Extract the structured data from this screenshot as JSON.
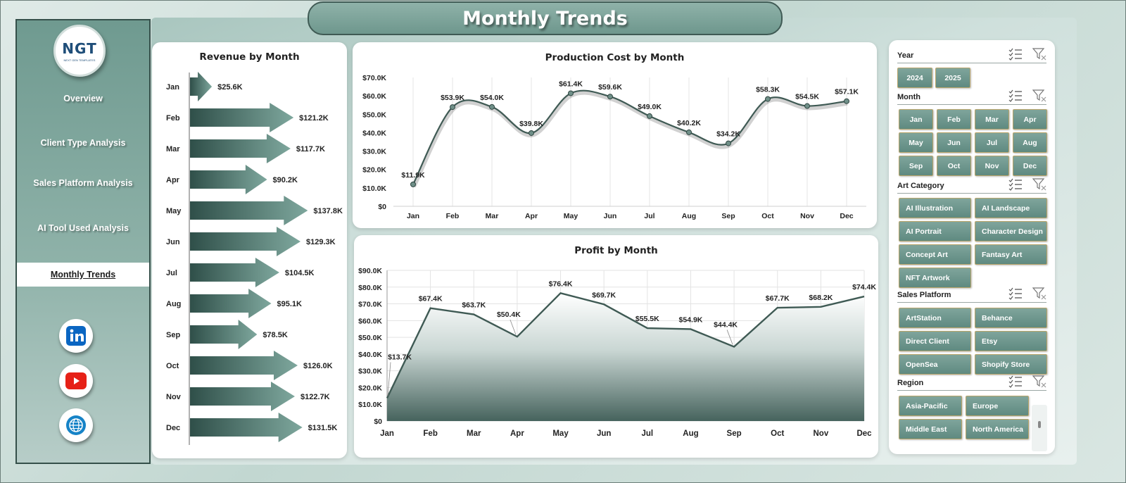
{
  "title": "Monthly Trends",
  "logo": {
    "text": "NGT",
    "subtitle": "NEXT GEN TEMPLATES"
  },
  "nav": [
    {
      "label": "Overview"
    },
    {
      "label": "Client Type Analysis"
    },
    {
      "label": "Sales Platform Analysis"
    },
    {
      "label": "AI Tool Used Analysis"
    },
    {
      "label": "Monthly Trends",
      "active": true
    }
  ],
  "social": [
    {
      "icon": "linkedin-icon",
      "color": "#0a66c2"
    },
    {
      "icon": "youtube-icon",
      "color": "#e62117"
    },
    {
      "icon": "globe-icon",
      "color": "#1683c7"
    }
  ],
  "colors": {
    "accent": "#3e6b61",
    "line": "#3f5a54",
    "slicer_button": "#6d978d"
  },
  "chart_data": [
    {
      "type": "bar",
      "title": "Revenue  by Month",
      "orientation": "horizontal",
      "categories": [
        "Jan",
        "Feb",
        "Mar",
        "Apr",
        "May",
        "Jun",
        "Jul",
        "Aug",
        "Sep",
        "Oct",
        "Nov",
        "Dec"
      ],
      "values": [
        25.6,
        121.2,
        117.7,
        90.2,
        137.8,
        129.3,
        104.5,
        95.1,
        78.5,
        126.0,
        122.7,
        131.5
      ],
      "labels": [
        "$25.6K",
        "$121.2K",
        "$117.7K",
        "$90.2K",
        "$137.8K",
        "$129.3K",
        "$104.5K",
        "$95.1K",
        "$78.5K",
        "$126.0K",
        "$122.7K",
        "$131.5K"
      ],
      "unit": "K"
    },
    {
      "type": "line",
      "title": "Production Cost by Month",
      "categories": [
        "Jan",
        "Feb",
        "Mar",
        "Apr",
        "May",
        "Jun",
        "Jul",
        "Aug",
        "Sep",
        "Oct",
        "Nov",
        "Dec"
      ],
      "values": [
        11.9,
        53.9,
        54.0,
        39.8,
        61.4,
        59.6,
        49.0,
        40.2,
        34.2,
        58.3,
        54.5,
        57.1
      ],
      "labels": [
        "$11.9K",
        "$53.9K",
        "$54.0K",
        "$39.8K",
        "$61.4K",
        "$59.6K",
        "$49.0K",
        "$40.2K",
        "$34.2K",
        "$58.3K",
        "$54.5K",
        "$57.1K"
      ],
      "yticks": [
        "$0",
        "$10.0K",
        "$20.0K",
        "$30.0K",
        "$40.0K",
        "$50.0K",
        "$60.0K",
        "$70.0K"
      ],
      "ylim": [
        0,
        70
      ]
    },
    {
      "type": "area",
      "title": "Profit by Month",
      "categories": [
        "Jan",
        "Feb",
        "Mar",
        "Apr",
        "May",
        "Jun",
        "Jul",
        "Aug",
        "Sep",
        "Oct",
        "Nov",
        "Dec"
      ],
      "values": [
        13.7,
        67.4,
        63.7,
        50.4,
        76.4,
        69.7,
        55.5,
        54.9,
        44.4,
        67.7,
        68.2,
        74.4
      ],
      "labels": [
        "$13.7K",
        "$67.4K",
        "$63.7K",
        "$50.4K",
        "$76.4K",
        "$69.7K",
        "$55.5K",
        "$54.9K",
        "$44.4K",
        "$67.7K",
        "$68.2K",
        "$74.4K"
      ],
      "yticks": [
        "$0",
        "$10.0K",
        "$20.0K",
        "$30.0K",
        "$40.0K",
        "$50.0K",
        "$60.0K",
        "$70.0K",
        "$80.0K",
        "$90.0K"
      ],
      "ylim": [
        0,
        90
      ]
    }
  ],
  "slicers": [
    {
      "name": "Year",
      "items": [
        "2024",
        "2025"
      ]
    },
    {
      "name": "Month",
      "items": [
        "Jan",
        "Feb",
        "Mar",
        "Apr",
        "May",
        "Jun",
        "Jul",
        "Aug",
        "Sep",
        "Oct",
        "Nov",
        "Dec"
      ]
    },
    {
      "name": "Art Category",
      "items": [
        "AI Illustration",
        "AI Landscape",
        "AI Portrait",
        "Character Design",
        "Concept Art",
        "Fantasy Art",
        "NFT Artwork"
      ]
    },
    {
      "name": "Sales Platform",
      "items": [
        "ArtStation",
        "Behance",
        "Direct Client",
        "Etsy",
        "OpenSea",
        "Shopify Store"
      ]
    },
    {
      "name": "Region",
      "items": [
        "Asia-Pacific",
        "Europe",
        "Middle East",
        "North America"
      ]
    }
  ]
}
